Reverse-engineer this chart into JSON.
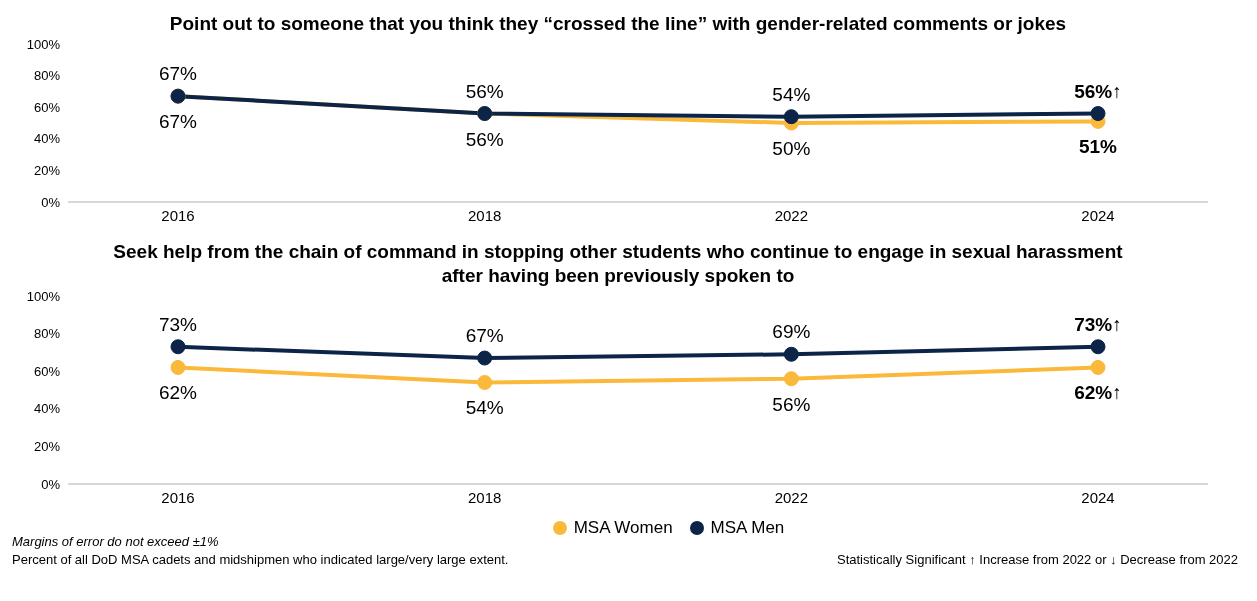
{
  "chart_data": [
    {
      "type": "line",
      "title": "Point out to someone that you think they “crossed the line” with gender-related comments or jokes",
      "categories": [
        "2016",
        "2018",
        "2022",
        "2024"
      ],
      "series": [
        {
          "color": "#fbb93b",
          "values": [
            67,
            56,
            50,
            51
          ],
          "value_labels": [
            "67%",
            "56%",
            "50%",
            "51%"
          ]
        },
        {
          "color": "#0b2447",
          "values": [
            67,
            56,
            54,
            56
          ],
          "value_labels": [
            "67%",
            "56%",
            "54%",
            "56%↑"
          ]
        }
      ],
      "ylim": [
        0,
        100
      ],
      "yticks": [
        {
          "value": 0,
          "label": "0%"
        },
        {
          "value": 20,
          "label": "20%"
        },
        {
          "value": 40,
          "label": "40%"
        },
        {
          "value": 60,
          "label": "60%"
        },
        {
          "value": 80,
          "label": "80%"
        },
        {
          "value": 100,
          "label": "100%"
        }
      ],
      "grid": false,
      "legend": false,
      "marker": "circle",
      "line_style": "solid"
    },
    {
      "type": "line",
      "title": "Seek help from the chain of command in stopping other students who continue to engage in sexual harassment after having been previously spoken to",
      "categories": [
        "2016",
        "2018",
        "2022",
        "2024"
      ],
      "series": [
        {
          "name": "MSA Women",
          "color": "#fbb93b",
          "values": [
            62,
            54,
            56,
            62
          ],
          "value_labels": [
            "62%",
            "54%",
            "56%",
            "62%↑"
          ]
        },
        {
          "name": "MSA Men",
          "color": "#0b2447",
          "values": [
            73,
            67,
            69,
            73
          ],
          "value_labels": [
            "73%",
            "67%",
            "69%",
            "73%↑"
          ]
        }
      ],
      "ylim": [
        0,
        100
      ],
      "yticks": [
        {
          "value": 0,
          "label": "0%"
        },
        {
          "value": 20,
          "label": "20%"
        },
        {
          "value": 40,
          "label": "40%"
        },
        {
          "value": 60,
          "label": "60%"
        },
        {
          "value": 80,
          "label": "80%"
        },
        {
          "value": 100,
          "label": "100%"
        }
      ],
      "grid": false,
      "legend": "bottom",
      "marker": "circle",
      "line_style": "solid",
      "annotations": [
        "Margins of error do not exceed ±1%",
        "Percent of all DoD MSA cadets and midshipmen who indicated large/very large extent.",
        "Statistically Significant ↑ Increase from 2022 or ↓ Decrease from 2022"
      ]
    }
  ]
}
